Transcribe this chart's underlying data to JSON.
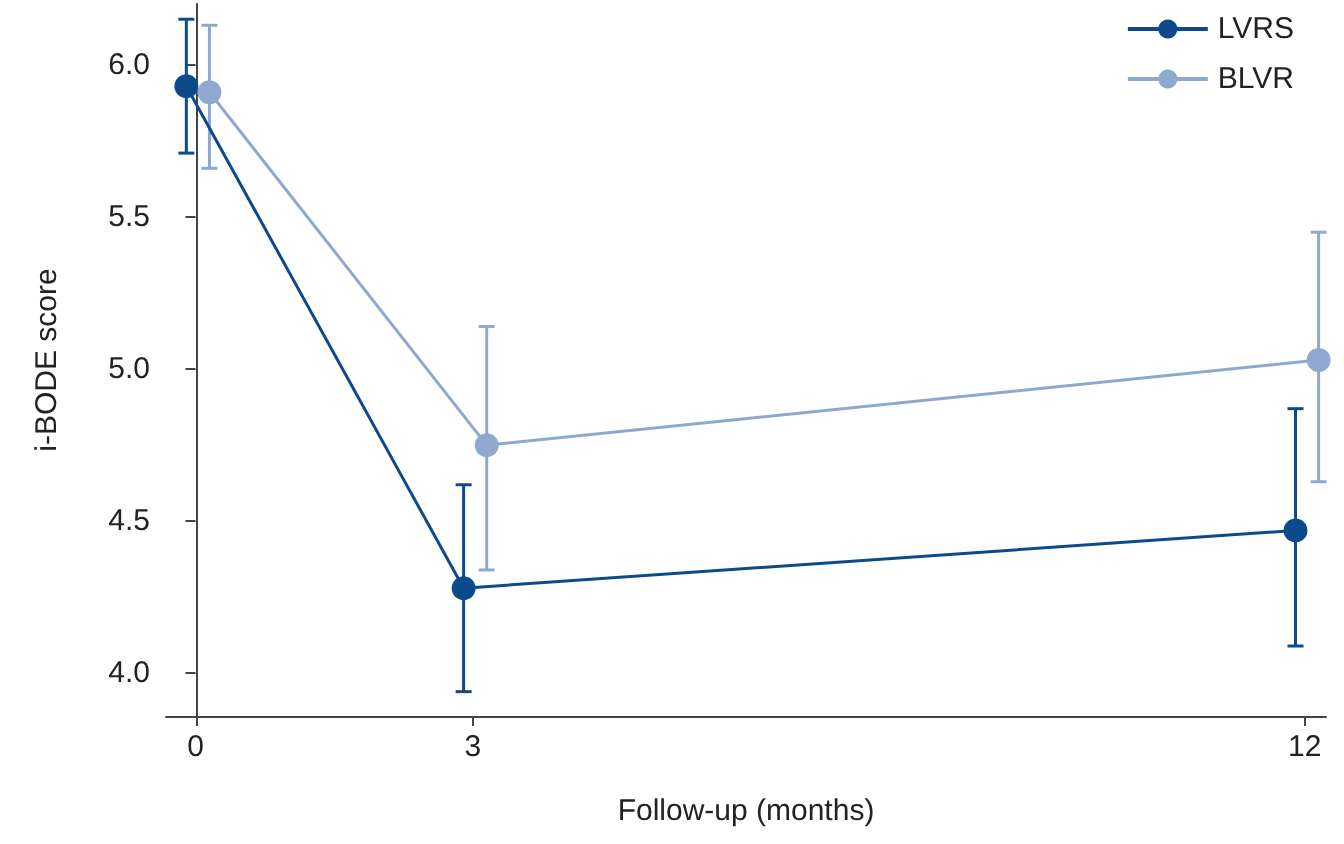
{
  "chart_data": {
    "type": "line",
    "xlabel": "Follow-up (months)",
    "ylabel": "i-BODE score",
    "xlim": [
      -0.32,
      12.23
    ],
    "xticks": [
      0,
      3,
      12
    ],
    "ylim": [
      3.86,
      6.2
    ],
    "yticks": [
      {
        "value": 4,
        "label": "4.0"
      },
      {
        "value": 4.5,
        "label": "4.5"
      },
      {
        "value": 5,
        "label": "5.0"
      },
      {
        "value": 5.5,
        "label": "5.5"
      },
      {
        "value": 6,
        "label": "6.0"
      }
    ],
    "series": [
      {
        "name": "LVRS",
        "color": "#0d4a8c",
        "x": [
          -0.1,
          2.9,
          11.9
        ],
        "values": [
          5.93,
          4.28,
          4.47
        ],
        "errors": [
          [
            5.71,
            6.15
          ],
          [
            3.94,
            4.62
          ],
          [
            4.09,
            4.87
          ]
        ]
      },
      {
        "name": "BLVR",
        "color": "#8fa8d0",
        "x": [
          0.15,
          3.15,
          12.15
        ],
        "values": [
          5.91,
          4.75,
          5.03
        ],
        "errors": [
          [
            5.66,
            6.13
          ],
          [
            4.34,
            5.14
          ],
          [
            4.63,
            5.45
          ]
        ]
      }
    ],
    "grid": false,
    "legend": "top right",
    "marker": "circle",
    "line_style": "solid"
  }
}
